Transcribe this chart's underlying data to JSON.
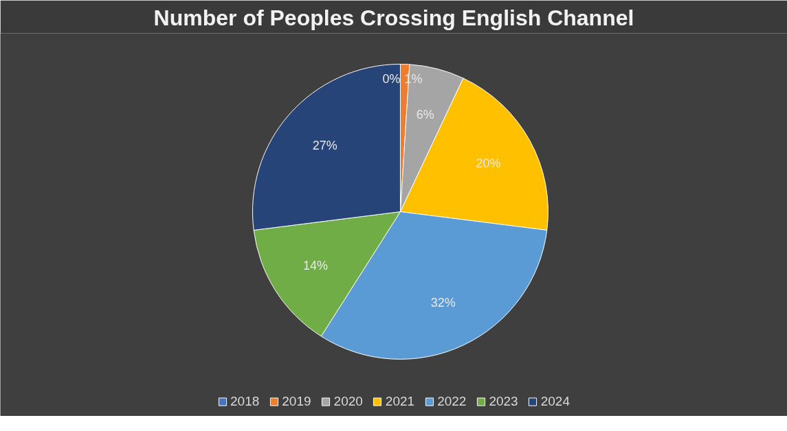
{
  "chart_data": {
    "type": "pie",
    "title": "Number of Peoples Crossing English Channel",
    "categories": [
      "2018",
      "2019",
      "2020",
      "2021",
      "2022",
      "2023",
      "2024"
    ],
    "values": [
      0,
      1,
      6,
      20,
      32,
      14,
      27
    ],
    "colors": [
      "#4472c4",
      "#ed7d31",
      "#a5a5a5",
      "#ffc000",
      "#5b9bd5",
      "#70ad47",
      "#264478"
    ],
    "value_labels": [
      "0%",
      "1%",
      "6%",
      "20%",
      "32%",
      "14%",
      "27%"
    ],
    "legend": "bottom"
  }
}
